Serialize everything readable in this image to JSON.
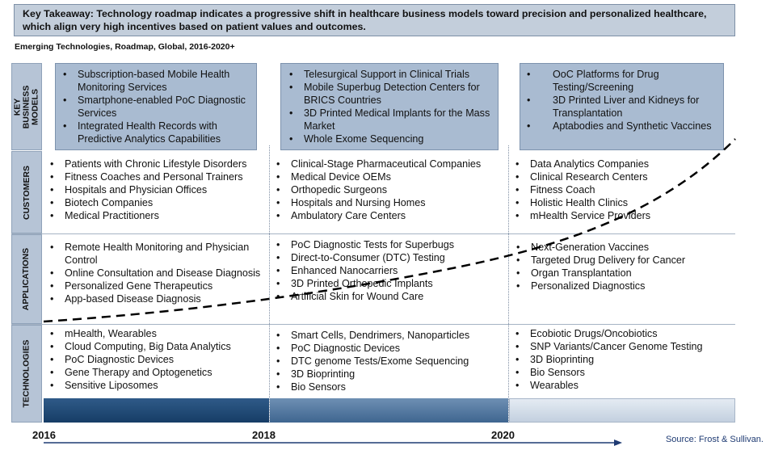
{
  "takeaway": "Key Takeaway: Technology roadmap indicates a progressive shift in healthcare business models toward precision and personalized healthcare, which align very high incentives based on patient values and outcomes.",
  "subtitle": "Emerging Technologies, Roadmap, Global, 2016-2020+",
  "rows": {
    "models": "KEY BUSINESS MODELS",
    "customers": "CUSTOMERS",
    "applications": "APPLICATIONS",
    "technologies": "TECHNOLOGIES"
  },
  "models": [
    [
      "Subscription-based Mobile Health Monitoring Services",
      "Smartphone-enabled PoC Diagnostic Services",
      "Integrated Health Records with Predictive Analytics Capabilities"
    ],
    [
      "Telesurgical Support in Clinical Trials",
      "Mobile Superbug Detection Centers for BRICS Countries",
      "3D Printed Medical Implants for the Mass Market",
      "Whole Exome Sequencing"
    ],
    [
      "OoC Platforms for Drug Testing/Screening",
      "3D Printed Liver and Kidneys for Transplantation",
      "Aptabodies and Synthetic Vaccines"
    ]
  ],
  "customers": [
    [
      "Patients with Chronic Lifestyle Disorders",
      "Fitness Coaches and Personal Trainers",
      "Hospitals and Physician Offices",
      "Biotech Companies",
      "Medical Practitioners"
    ],
    [
      "Clinical-Stage Pharmaceutical Companies",
      "Medical Device OEMs",
      "Orthopedic Surgeons",
      "Hospitals and Nursing Homes",
      "Ambulatory Care Centers"
    ],
    [
      "Data Analytics Companies",
      "Clinical Research Centers",
      "Fitness Coach",
      "Holistic Health Clinics",
      "mHealth Service Providers"
    ]
  ],
  "applications": [
    [
      "Remote Health Monitoring and Physician Control",
      "Online Consultation and Disease Diagnosis",
      "Personalized Gene Therapeutics",
      "App-based Disease Diagnosis"
    ],
    [
      "PoC Diagnostic Tests for Superbugs",
      "Direct-to-Consumer (DTC) Testing",
      "Enhanced Nanocarriers",
      "3D Printed Orthopedic Implants",
      "Artificial Skin for Wound Care"
    ],
    [
      "Next-Generation Vaccines",
      "Targeted Drug Delivery for Cancer",
      "Organ Transplantation",
      "Personalized Diagnostics"
    ]
  ],
  "technologies": [
    [
      "mHealth, Wearables",
      "Cloud Computing, Big Data Analytics",
      "PoC Diagnostic Devices",
      "Gene Therapy and Optogenetics",
      "Sensitive Liposomes"
    ],
    [
      "Smart Cells, Dendrimers, Nanoparticles",
      "PoC Diagnostic Devices",
      "DTC genome Tests/Exome Sequencing",
      "3D Bioprinting",
      "Bio Sensors"
    ],
    [
      "Ecobiotic Drugs/Oncobiotics",
      "SNP Variants/Cancer Genome Testing",
      "3D Bioprinting",
      "Bio Sensors",
      "Wearables"
    ]
  ],
  "timeline": {
    "years": [
      "2016",
      "2018",
      "2020"
    ],
    "color": "#1f3b73"
  },
  "source": "Source: Frost & Sullivan."
}
